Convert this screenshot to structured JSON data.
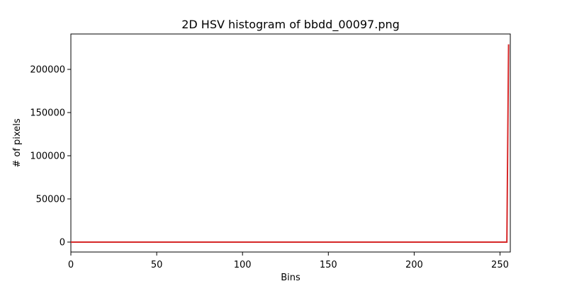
{
  "chart_data": {
    "type": "line",
    "title": "2D HSV histogram of bbdd_00097.png",
    "xlabel": "Bins",
    "ylabel": "# of pixels",
    "xlim": [
      0,
      256
    ],
    "ylim": [
      -11500,
      241000
    ],
    "xticks": [
      0,
      50,
      100,
      150,
      200,
      250
    ],
    "yticks": [
      0,
      50000,
      100000,
      150000,
      200000
    ],
    "xtick_labels": [
      "0",
      "50",
      "100",
      "150",
      "200",
      "250"
    ],
    "ytick_labels": [
      "0",
      "50000",
      "100000",
      "150000",
      "200000"
    ],
    "grid": false,
    "legend": "none",
    "series": [
      {
        "color": "#d62728",
        "x": [
          0,
          254,
          255
        ],
        "y": [
          0,
          0,
          229000
        ]
      }
    ]
  }
}
